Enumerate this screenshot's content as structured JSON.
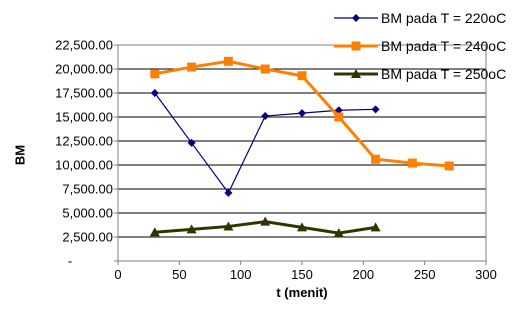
{
  "chart_data": {
    "type": "line",
    "title": "",
    "xlabel": "t (menit)",
    "ylabel": "BM",
    "xlim": [
      0,
      300
    ],
    "ylim": [
      0,
      22500
    ],
    "xticks": [
      "0",
      "50",
      "100",
      "150",
      "200",
      "250",
      "300"
    ],
    "yticks": [
      "-",
      "2,500.00",
      "5,000.00",
      "7,500.00",
      "10,000.00",
      "12,500.00",
      "15,000.00",
      "17,500.00",
      "20,000.00",
      "22,500.00"
    ],
    "grid": "horizontal",
    "legend_position": "top-right",
    "series": [
      {
        "name": "BM pada T = 220oC",
        "color": "#000080",
        "marker": "diamond",
        "x": [
          30,
          60,
          90,
          120,
          150,
          180,
          210
        ],
        "y": [
          17500,
          12300,
          7100,
          15100,
          15400,
          15700,
          15800
        ]
      },
      {
        "name": "BM pada T = 240oC",
        "color": "#FF8000",
        "marker": "square",
        "x": [
          30,
          60,
          90,
          120,
          150,
          180,
          210,
          240,
          270
        ],
        "y": [
          19500,
          20200,
          20800,
          20000,
          19300,
          15000,
          10600,
          10200,
          9900
        ]
      },
      {
        "name": "BM pada T = 250oC",
        "color": "#333300",
        "marker": "triangle",
        "x": [
          30,
          60,
          90,
          120,
          150,
          180,
          210
        ],
        "y": [
          3000,
          3300,
          3600,
          4100,
          3500,
          2900,
          3500
        ]
      }
    ]
  }
}
